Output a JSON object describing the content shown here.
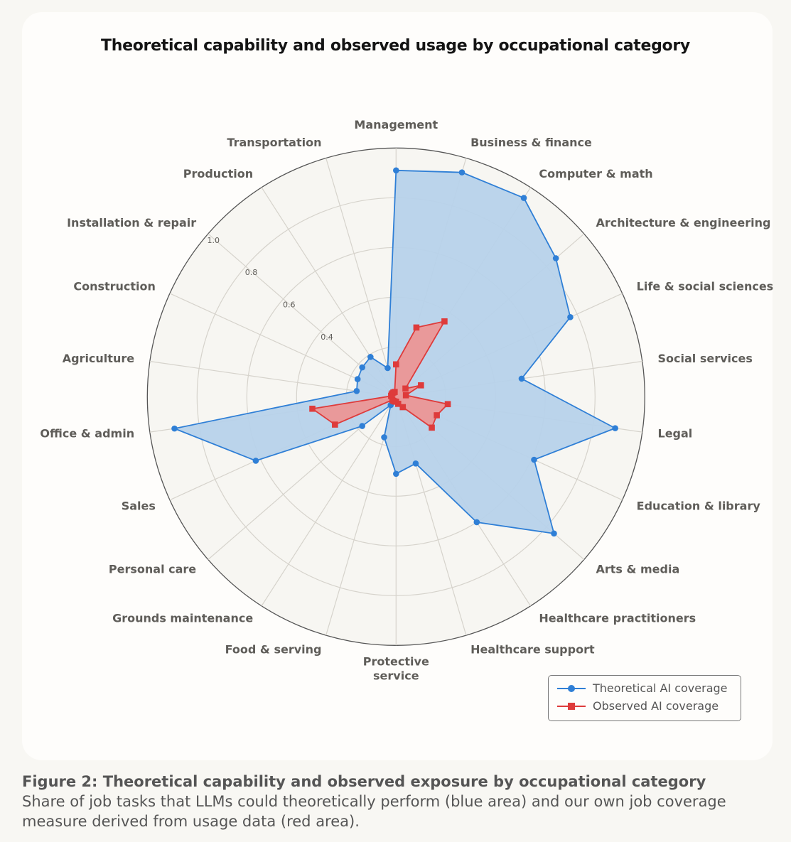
{
  "chart_data": {
    "type": "radar",
    "title": "Theoretical capability and observed usage by occupational category",
    "categories": [
      "Management",
      "Business & finance",
      "Computer & math",
      "Architecture & engineering",
      "Life & social sciences",
      "Social services",
      "Legal",
      "Education & library",
      "Arts & media",
      "Healthcare practitioners",
      "Healthcare support",
      "Protective service",
      "Food & serving",
      "Grounds maintenance",
      "Personal care",
      "Sales",
      "Office & admin",
      "Agriculture",
      "Construction",
      "Installation & repair",
      "Production",
      "Transportation"
    ],
    "series": [
      {
        "name": "Theoretical AI coverage",
        "color": "#2f7fd6",
        "fill": "#b7d2ea",
        "marker": "circle",
        "values": [
          0.91,
          0.94,
          0.95,
          0.85,
          0.77,
          0.51,
          0.89,
          0.61,
          0.84,
          0.6,
          0.28,
          0.31,
          0.17,
          0.04,
          0.18,
          0.62,
          0.9,
          0.16,
          0.17,
          0.18,
          0.19,
          0.12
        ]
      },
      {
        "name": "Observed AI coverage",
        "color": "#de3b3b",
        "fill": "#ee9291",
        "marker": "square",
        "values": [
          0.13,
          0.29,
          0.36,
          0.05,
          0.11,
          0.04,
          0.21,
          0.18,
          0.19,
          0.05,
          0.03,
          0.02,
          0.02,
          0.02,
          0.02,
          0.27,
          0.34,
          0.02,
          0.02,
          0.02,
          0.02,
          0.02
        ]
      }
    ],
    "radial_range": [
      0,
      1.0
    ],
    "radial_ticks": [
      0.2,
      0.4,
      0.6,
      0.8,
      1.0
    ],
    "radial_tick_labels": [
      "0.4",
      "0.6",
      "0.8",
      "1.0"
    ],
    "grid": true,
    "legend_position": "bottom-right"
  },
  "caption": {
    "heading": "Figure 2: Theoretical capability and observed exposure by occupational category",
    "text": "Share of job tasks that LLMs could theoretically perform (blue area) and our own job coverage measure derived from usage data (red area)."
  }
}
